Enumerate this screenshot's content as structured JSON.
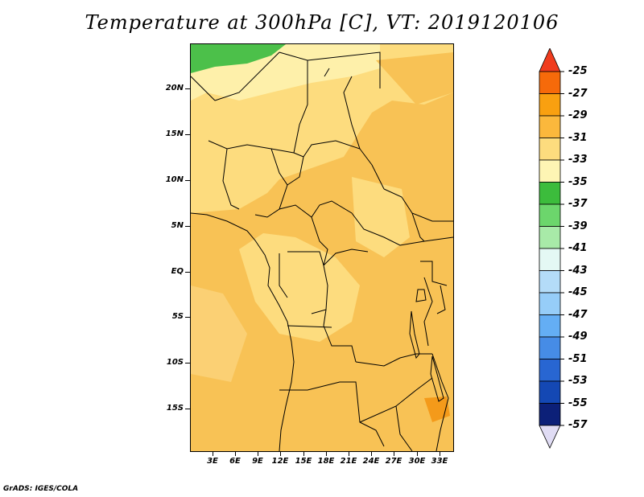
{
  "title": "Temperature at 300hPa [C], VT: 2019120106",
  "footer": "GrADS: IGES/COLA",
  "map": {
    "lon_labels": [
      "3E",
      "6E",
      "9E",
      "12E",
      "15E",
      "18E",
      "21E",
      "24E",
      "27E",
      "30E",
      "33E"
    ],
    "lat_labels": [
      "20N",
      "15N",
      "10N",
      "5N",
      "EQ",
      "5S",
      "10S",
      "15S"
    ]
  },
  "colorbar": {
    "labels": [
      "-25",
      "-27",
      "-29",
      "-31",
      "-33",
      "-35",
      "-37",
      "-39",
      "-41",
      "-43",
      "-45",
      "-47",
      "-49",
      "-51",
      "-53",
      "-55",
      "-57"
    ],
    "colors": [
      "#f03c1e",
      "#f66a0a",
      "#f9a010",
      "#fbb83c",
      "#fddc7e",
      "#fef5b4",
      "#3cbc3c",
      "#6cd66c",
      "#a8eaa8",
      "#e4f8f4",
      "#b4dcf8",
      "#96cdf8",
      "#64aef4",
      "#468ce6",
      "#2866d2",
      "#1448b4",
      "#0c2078",
      "#e0dcf4"
    ]
  }
}
